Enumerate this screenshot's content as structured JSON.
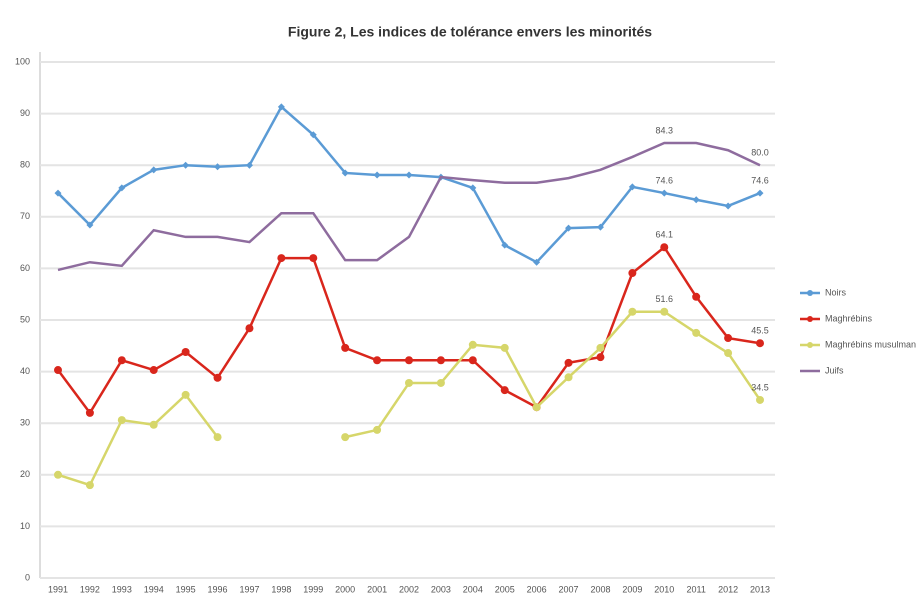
{
  "chart_data": {
    "type": "line",
    "title": "Figure 2, Les indices de tolérance envers les minorités",
    "categories": [
      "1991",
      "1992",
      "1993",
      "1994",
      "1995",
      "1996",
      "1997",
      "1998",
      "1999",
      "2000",
      "2001",
      "2002",
      "2003",
      "2004",
      "2005",
      "2006",
      "2007",
      "2008",
      "2009",
      "2010",
      "2011",
      "2012",
      "2013"
    ],
    "series": [
      {
        "name": "Noirs",
        "color": "#5b9bd5",
        "marker": "diamond",
        "values": [
          74.6,
          68.4,
          75.6,
          79.1,
          80.0,
          79.7,
          80.0,
          91.3,
          85.9,
          78.5,
          78.1,
          78.1,
          77.7,
          75.6,
          64.5,
          61.2,
          67.8,
          68.0,
          75.8,
          74.6,
          73.3,
          72.1,
          74.6
        ],
        "value_labels": [
          null,
          null,
          null,
          null,
          null,
          null,
          null,
          null,
          null,
          null,
          null,
          null,
          null,
          null,
          null,
          null,
          null,
          null,
          null,
          "74.6",
          null,
          null,
          "74.6"
        ]
      },
      {
        "name": "Maghrébins",
        "color": "#d9261c",
        "marker": "circle",
        "values": [
          40.3,
          32.0,
          42.2,
          40.3,
          43.8,
          38.8,
          48.4,
          62.0,
          62.0,
          44.6,
          42.2,
          42.2,
          42.2,
          42.2,
          36.4,
          33.1,
          41.7,
          42.8,
          59.1,
          64.1,
          54.5,
          46.5,
          45.5
        ],
        "value_labels": [
          null,
          null,
          null,
          null,
          null,
          null,
          null,
          null,
          null,
          null,
          null,
          null,
          null,
          null,
          null,
          null,
          null,
          null,
          null,
          "64.1",
          null,
          null,
          "45.5"
        ]
      },
      {
        "name": "Maghrébins musulmans",
        "color": "#d6d66a",
        "marker": "circle",
        "values": [
          20.0,
          18.0,
          30.6,
          29.7,
          35.5,
          27.3,
          null,
          null,
          null,
          27.3,
          28.7,
          37.8,
          37.8,
          45.2,
          44.6,
          33.1,
          38.9,
          44.6,
          51.6,
          51.6,
          47.5,
          43.6,
          34.5
        ],
        "value_labels": [
          null,
          null,
          null,
          null,
          null,
          null,
          null,
          null,
          null,
          null,
          null,
          null,
          null,
          null,
          null,
          null,
          null,
          null,
          null,
          "51.6",
          null,
          null,
          "34.5"
        ]
      },
      {
        "name": "Juifs",
        "color": "#8e6c9e",
        "marker": "none",
        "values": [
          59.7,
          61.2,
          60.5,
          67.4,
          66.1,
          66.1,
          65.1,
          70.7,
          70.7,
          61.6,
          61.6,
          66.1,
          77.7,
          77.1,
          76.6,
          76.6,
          77.5,
          79.1,
          81.6,
          84.3,
          84.3,
          82.9,
          80.0
        ],
        "value_labels": [
          null,
          null,
          null,
          null,
          null,
          null,
          null,
          null,
          null,
          null,
          null,
          null,
          null,
          null,
          null,
          null,
          null,
          null,
          null,
          "84.3",
          null,
          null,
          "80.0"
        ]
      }
    ],
    "ylim": [
      0,
      100
    ],
    "yticks": [
      0,
      10,
      20,
      30,
      40,
      50,
      60,
      70,
      80,
      90,
      100
    ],
    "grid": true,
    "legend": "right"
  }
}
